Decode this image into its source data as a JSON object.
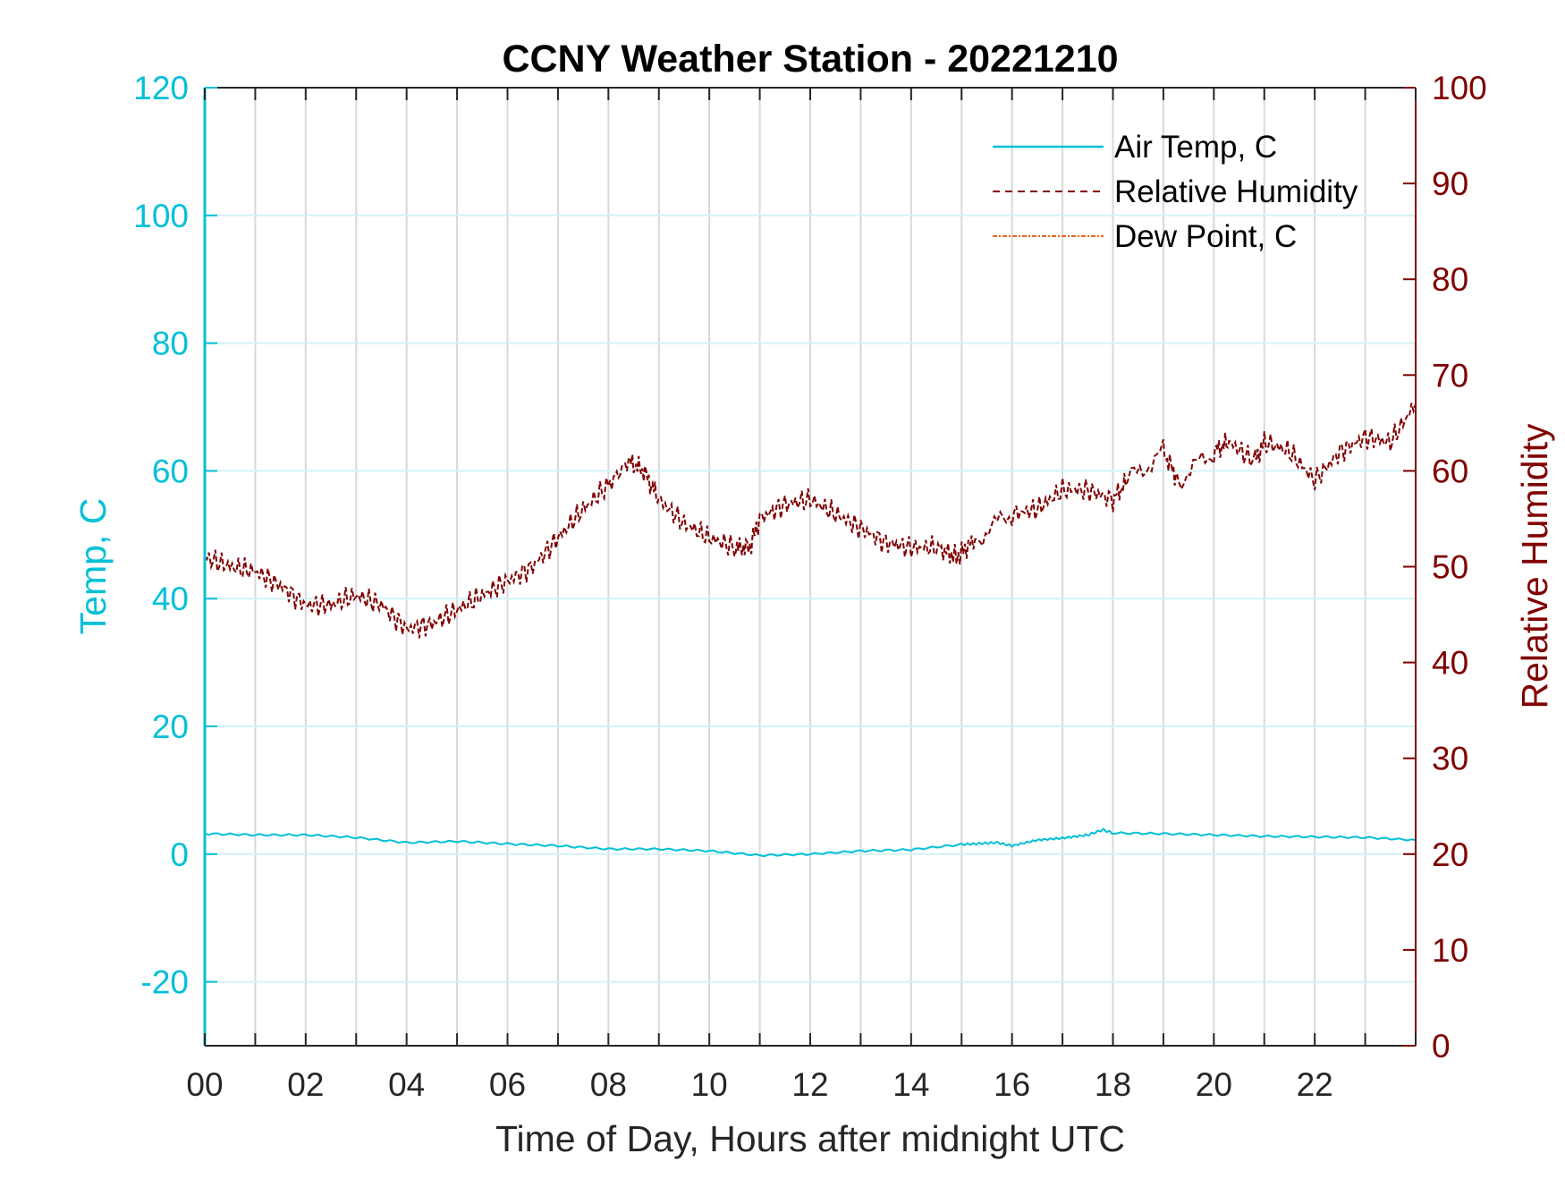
{
  "chart_data": {
    "type": "line",
    "title": "CCNY Weather Station - 20221210",
    "xlabel": "Time of Day, Hours after midnight UTC",
    "ylabel_left": "Temp, C",
    "ylabel_right": "Relative Humidity",
    "xlim": [
      0,
      24
    ],
    "ylim_left": [
      -30,
      120
    ],
    "ylim_right": [
      0,
      100
    ],
    "x_ticks": [
      "00",
      "02",
      "04",
      "06",
      "08",
      "10",
      "12",
      "14",
      "16",
      "18",
      "20",
      "22"
    ],
    "x_tick_values": [
      0,
      2,
      4,
      6,
      8,
      10,
      12,
      14,
      16,
      18,
      20,
      22
    ],
    "y_ticks_left": [
      -20,
      0,
      20,
      40,
      60,
      80,
      100,
      120
    ],
    "y_ticks_right": [
      0,
      10,
      20,
      30,
      40,
      50,
      60,
      70,
      80,
      90,
      100
    ],
    "grid": true,
    "legend_position": "top-right",
    "colors": {
      "temp": "#00c0d8",
      "rh": "#800000",
      "dew": "#e8601c",
      "axis": "#262626"
    },
    "series": [
      {
        "name": "Air Temp, C",
        "axis": "left",
        "style": "solid",
        "x": [
          0,
          1,
          2,
          3,
          4,
          5,
          6,
          7,
          8,
          9,
          10,
          11,
          12,
          13,
          14,
          15,
          15.7,
          16,
          16.5,
          17,
          17.5,
          17.8,
          18,
          19,
          20,
          21,
          22,
          23,
          24
        ],
        "y": [
          3.2,
          3.0,
          3.0,
          2.6,
          1.8,
          2.0,
          1.6,
          1.3,
          0.8,
          0.8,
          0.5,
          -0.2,
          0.0,
          0.5,
          0.7,
          1.5,
          1.8,
          1.3,
          2.2,
          2.5,
          3.0,
          3.8,
          3.3,
          3.2,
          3.0,
          2.8,
          2.7,
          2.6,
          2.2
        ]
      },
      {
        "name": "Relative Humidity",
        "axis": "right",
        "style": "dashed",
        "x": [
          0,
          0.5,
          1,
          1.5,
          2,
          2.5,
          3,
          3.5,
          4,
          4.5,
          5,
          5.5,
          6,
          6.5,
          7,
          7.5,
          8,
          8.4,
          8.7,
          9,
          9.5,
          10,
          10.5,
          10.8,
          11,
          11.5,
          12,
          12.5,
          13,
          13.5,
          14,
          14.5,
          14.9,
          15.3,
          16,
          16.5,
          17,
          17.5,
          18,
          18.3,
          19,
          19.3,
          20,
          20.3,
          20.8,
          21,
          21.5,
          22,
          22.5,
          23,
          23.5,
          24
        ],
        "y": [
          51,
          50,
          49.5,
          48,
          46,
          46,
          47,
          46,
          43.5,
          44,
          45.5,
          47,
          48.5,
          50,
          53,
          56,
          58.5,
          61,
          60,
          57,
          54.5,
          53,
          52,
          52,
          55,
          56.5,
          57,
          55.5,
          54,
          52.5,
          52,
          52,
          51,
          53,
          55.5,
          56,
          58,
          58,
          57,
          59,
          62,
          59,
          62,
          63,
          61,
          63,
          62,
          59,
          62,
          63.5,
          63,
          67
        ]
      },
      {
        "name": "Dew Point, C",
        "axis": "left",
        "style": "dashdot",
        "x": [],
        "y": []
      }
    ]
  }
}
